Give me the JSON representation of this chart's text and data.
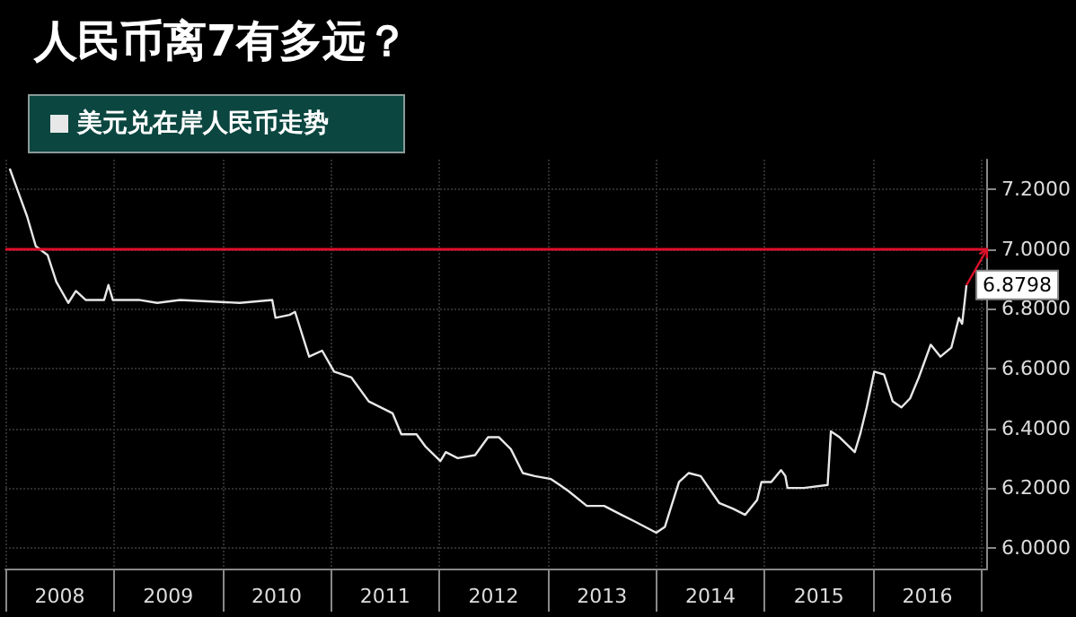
{
  "chart_data": {
    "type": "line",
    "title": "人民币离7有多远？",
    "x": [
      2008.04,
      2008.12,
      2008.2,
      2008.28,
      2008.39,
      2008.47,
      2008.58,
      2008.65,
      2008.74,
      2008.91,
      2008.95,
      2008.99,
      2009.23,
      2009.4,
      2009.61,
      2010.16,
      2010.46,
      2010.49,
      2010.62,
      2010.67,
      2010.8,
      2010.92,
      2011.03,
      2011.19,
      2011.35,
      2011.57,
      2011.65,
      2011.79,
      2011.87,
      2012.01,
      2012.06,
      2012.17,
      2012.33,
      2012.45,
      2012.55,
      2012.66,
      2012.77,
      2012.88,
      2013.03,
      2013.11,
      2013.19,
      2013.36,
      2013.52,
      2013.68,
      2013.79,
      2014.0,
      2014.08,
      2014.14,
      2014.21,
      2014.3,
      2014.41,
      2014.58,
      2014.71,
      2014.82,
      2014.93,
      2014.97,
      2015.06,
      2015.15,
      2015.19,
      2015.21,
      2015.36,
      2015.58,
      2015.61,
      2015.69,
      2015.83,
      2015.88,
      2015.94,
      2016.01,
      2016.1,
      2016.18,
      2016.26,
      2016.34,
      2016.42,
      2016.53,
      2016.62,
      2016.72,
      2016.79,
      2016.82,
      2016.86
    ],
    "series": [
      {
        "name": "美元兑在岸人民币走势",
        "color": "#e8e8e8",
        "values": [
          7.27,
          7.19,
          7.11,
          7.01,
          6.98,
          6.89,
          6.82,
          6.86,
          6.83,
          6.83,
          6.88,
          6.83,
          6.83,
          6.82,
          6.83,
          6.82,
          6.83,
          6.77,
          6.78,
          6.79,
          6.64,
          6.66,
          6.59,
          6.57,
          6.49,
          6.45,
          6.38,
          6.38,
          6.34,
          6.29,
          6.32,
          6.3,
          6.31,
          6.37,
          6.37,
          6.33,
          6.25,
          6.24,
          6.23,
          6.21,
          6.19,
          6.14,
          6.14,
          6.11,
          6.09,
          6.05,
          6.07,
          6.14,
          6.22,
          6.25,
          6.24,
          6.15,
          6.13,
          6.11,
          6.16,
          6.22,
          6.22,
          6.26,
          6.24,
          6.2,
          6.2,
          6.21,
          6.39,
          6.37,
          6.32,
          6.38,
          6.47,
          6.59,
          6.58,
          6.49,
          6.47,
          6.5,
          6.57,
          6.68,
          6.64,
          6.67,
          6.77,
          6.75,
          6.8798
        ],
        "value_labels": [
          null,
          null,
          null,
          null,
          null,
          null,
          null,
          null,
          null,
          null,
          null,
          null,
          null,
          null,
          null,
          null,
          null,
          null,
          null,
          null,
          null,
          null,
          null,
          null,
          null,
          null,
          null,
          null,
          null,
          null,
          null,
          null,
          null,
          null,
          null,
          null,
          null,
          null,
          null,
          null,
          null,
          null,
          null,
          null,
          null,
          null,
          null,
          null,
          null,
          null,
          null,
          null,
          null,
          null,
          null,
          null,
          null,
          null,
          null,
          null,
          null,
          null,
          null,
          null,
          null,
          null,
          null,
          null,
          null,
          null,
          null,
          null,
          null,
          null,
          null,
          null,
          null,
          null,
          "6.8798"
        ]
      }
    ],
    "xlim": [
      2008,
      2017.05
    ],
    "xticks": [
      {
        "value": 2008,
        "label": null
      },
      {
        "value": 2008.5,
        "label": "2008"
      },
      {
        "value": 2009,
        "label": null
      },
      {
        "value": 2009.5,
        "label": "2009"
      },
      {
        "value": 2010,
        "label": null
      },
      {
        "value": 2010.5,
        "label": "2010"
      },
      {
        "value": 2011,
        "label": null
      },
      {
        "value": 2011.5,
        "label": "2011"
      },
      {
        "value": 2012,
        "label": null
      },
      {
        "value": 2012.5,
        "label": "2012"
      },
      {
        "value": 2013,
        "label": null
      },
      {
        "value": 2013.5,
        "label": "2013"
      },
      {
        "value": 2014,
        "label": null
      },
      {
        "value": 2014.5,
        "label": "2014"
      },
      {
        "value": 2015,
        "label": null
      },
      {
        "value": 2015.5,
        "label": "2015"
      },
      {
        "value": 2016,
        "label": null
      },
      {
        "value": 2016.5,
        "label": "2016"
      },
      {
        "value": 2017,
        "label": null
      }
    ],
    "ylim": [
      5.93,
      7.3
    ],
    "yticks": [
      {
        "value": 6.0,
        "label": "6.0000"
      },
      {
        "value": 6.2,
        "label": "6.2000"
      },
      {
        "value": 6.4,
        "label": "6.4000"
      },
      {
        "value": 6.6,
        "label": "6.6000"
      },
      {
        "value": 6.8,
        "label": "6.8000"
      },
      {
        "value": 7.0,
        "label": "7.0000"
      },
      {
        "value": 7.2,
        "label": "7.2000"
      }
    ],
    "ref_lines": [
      {
        "axis": "y",
        "value": 7.0,
        "color": "#e0102a"
      }
    ],
    "grid": true,
    "legend": "top left"
  }
}
